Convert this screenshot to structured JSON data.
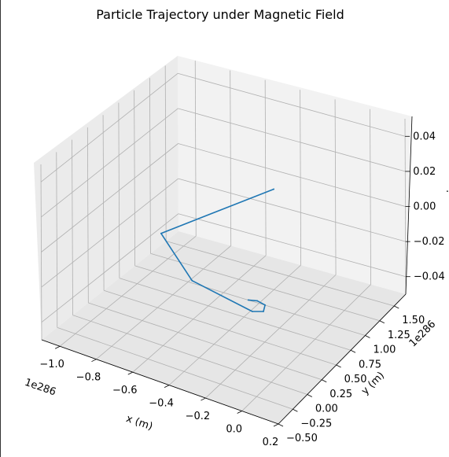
{
  "chart_data": {
    "type": "line",
    "projection": "3d",
    "title": "Particle Trajectory under Magnetic Field",
    "xlabel": "x (m)",
    "ylabel": "y (m)",
    "zlabel": "",
    "x_offset_text": "1e286",
    "y_offset_text": "1e286",
    "x_ticks": [
      "−1.0",
      "−0.8",
      "−0.6",
      "−0.4",
      "−0.2",
      "0.0",
      "0.2"
    ],
    "y_ticks": [
      "−0.50",
      "−0.25",
      "0.00",
      "0.25",
      "0.50",
      "0.75",
      "1.00",
      "1.25",
      "1.50"
    ],
    "z_ticks": [
      "−0.04",
      "−0.02",
      "0.00",
      "0.02",
      "0.04"
    ],
    "grid": true,
    "series": [
      {
        "color": "#1f77b4",
        "points": [
          {
            "x": -0.07,
            "y": -0.17,
            "z": 0.0
          },
          {
            "x": -0.03,
            "y": -0.14,
            "z": 0.0
          },
          {
            "x": 0.02,
            "y": -0.16,
            "z": 0.0
          },
          {
            "x": 0.04,
            "y": -0.25,
            "z": 0.0
          },
          {
            "x": -0.005,
            "y": -0.3,
            "z": 0.0
          },
          {
            "x": -0.38,
            "y": -0.17,
            "z": 0.0
          },
          {
            "x": -0.72,
            "y": 0.33,
            "z": 0.0
          },
          {
            "x": -0.46,
            "y": 1.43,
            "z": 0.0
          }
        ]
      }
    ]
  }
}
